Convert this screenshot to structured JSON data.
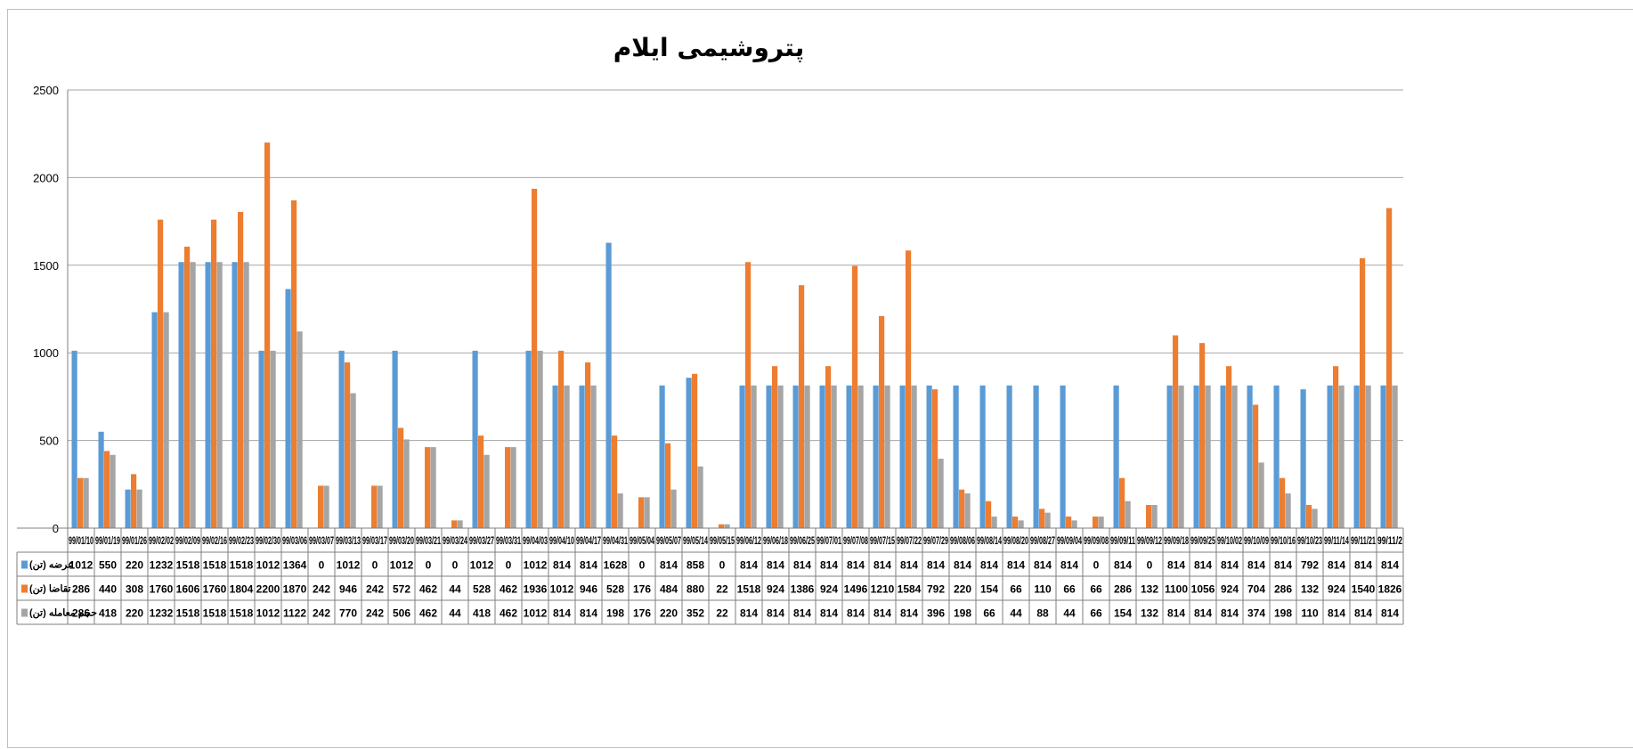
{
  "chart_data": {
    "type": "bar",
    "title": "پتروشیمی ایلام",
    "ylim": [
      0,
      2500
    ],
    "yticks": [
      0,
      500,
      1000,
      1500,
      2000,
      2500
    ],
    "grid": true,
    "legend_placement": "data-table-left",
    "categories": [
      "99/01/10",
      "99/01/19",
      "99/01/26",
      "99/02/02",
      "99/02/09",
      "99/02/16",
      "99/02/23",
      "99/02/30",
      "99/03/06",
      "99/03/07",
      "99/03/13",
      "99/03/17",
      "99/03/20",
      "99/03/21",
      "99/03/24",
      "99/03/27",
      "99/03/31",
      "99/04/03",
      "99/04/10",
      "99/04/17",
      "99/04/31",
      "99/05/04",
      "99/05/07",
      "99/05/14",
      "99/05/15",
      "99/06/12",
      "99/06/18",
      "99/06/25",
      "99/07/01",
      "99/07/08",
      "99/07/15",
      "99/07/22",
      "99/07/29",
      "99/08/06",
      "99/08/14",
      "99/08/20",
      "99/08/27",
      "99/09/04",
      "99/09/08",
      "99/09/11",
      "99/09/12",
      "99/09/18",
      "99/09/25",
      "99/10/02",
      "99/10/09",
      "99/10/16",
      "99/10/23",
      "99/11/14",
      "99/11/21",
      "99/11/2"
    ],
    "series": [
      {
        "name": "عرضه (تن)",
        "color": "#5b9bd5",
        "values": [
          1012,
          550,
          220,
          1232,
          1518,
          1518,
          1518,
          1012,
          1364,
          0,
          1012,
          0,
          1012,
          0,
          0,
          1012,
          0,
          1012,
          814,
          814,
          1628,
          0,
          814,
          858,
          0,
          814,
          814,
          814,
          814,
          814,
          814,
          814,
          814,
          814,
          814,
          814,
          814,
          814,
          0,
          814,
          0,
          814,
          814,
          814,
          814,
          814,
          792,
          814,
          814,
          814
        ]
      },
      {
        "name": "تقاضا (تن)",
        "color": "#ed7d31",
        "values": [
          286,
          440,
          308,
          1760,
          1606,
          1760,
          1804,
          2200,
          1870,
          242,
          946,
          242,
          572,
          462,
          44,
          528,
          462,
          1936,
          1012,
          946,
          528,
          176,
          484,
          880,
          22,
          1518,
          924,
          1386,
          924,
          1496,
          1210,
          1584,
          792,
          220,
          154,
          66,
          110,
          66,
          66,
          286,
          132,
          1100,
          1056,
          924,
          704,
          286,
          132,
          924,
          1540,
          1826
        ]
      },
      {
        "name": "حجم معامله (تن)",
        "color": "#a5a5a5",
        "values": [
          286,
          418,
          220,
          1232,
          1518,
          1518,
          1518,
          1012,
          1122,
          242,
          770,
          242,
          506,
          462,
          44,
          418,
          462,
          1012,
          814,
          814,
          198,
          176,
          220,
          352,
          22,
          814,
          814,
          814,
          814,
          814,
          814,
          814,
          396,
          198,
          66,
          44,
          88,
          44,
          66,
          154,
          132,
          814,
          814,
          814,
          374,
          198,
          110,
          814,
          814,
          814
        ]
      }
    ]
  }
}
